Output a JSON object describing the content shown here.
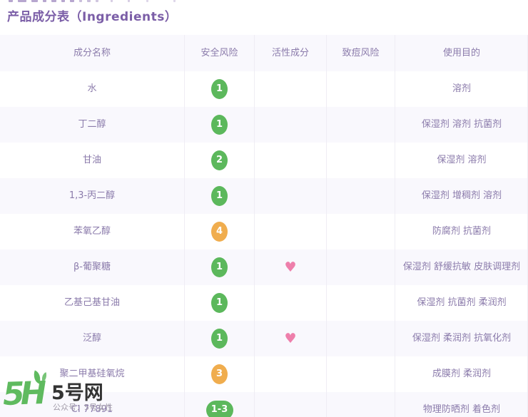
{
  "title": "产品成分表（Ingredients）",
  "colors": {
    "accent": "#7b5ea7",
    "cell-text": "#8b7bab",
    "row-alt": "#f9f8fd",
    "divider": "#efedf4",
    "green": "#5cb85c",
    "orange": "#f0ad4e",
    "heart": "#ee7fab",
    "logo-green": "#5fba5f"
  },
  "icons": {
    "heart": "♥"
  },
  "table": {
    "columns": [
      {
        "key": "name",
        "label": "成分名称"
      },
      {
        "key": "safety",
        "label": "安全风险"
      },
      {
        "key": "active",
        "label": "活性成分"
      },
      {
        "key": "acne",
        "label": "致痘风险"
      },
      {
        "key": "purpose",
        "label": "使用目的"
      }
    ],
    "rows": [
      {
        "name": "水",
        "safety": "1",
        "risk": "low",
        "heart": false,
        "acne": "",
        "purpose": "溶剂"
      },
      {
        "name": "丁二醇",
        "safety": "1",
        "risk": "low",
        "heart": false,
        "acne": "",
        "purpose": "保湿剂 溶剂 抗菌剂"
      },
      {
        "name": "甘油",
        "safety": "2",
        "risk": "low",
        "heart": false,
        "acne": "",
        "purpose": "保湿剂 溶剂"
      },
      {
        "name": "1,3-丙二醇",
        "safety": "1",
        "risk": "low",
        "heart": false,
        "acne": "",
        "purpose": "保湿剂 增稠剂 溶剂"
      },
      {
        "name": "苯氧乙醇",
        "safety": "4",
        "risk": "mid",
        "heart": false,
        "acne": "",
        "purpose": "防腐剂 抗菌剂"
      },
      {
        "name": "β-葡聚糖",
        "safety": "1",
        "risk": "low",
        "heart": true,
        "acne": "",
        "purpose": "保湿剂 舒缓抗敏 皮肤调理剂"
      },
      {
        "name": "乙基己基甘油",
        "safety": "1",
        "risk": "low",
        "heart": false,
        "acne": "",
        "purpose": "保湿剂 抗菌剂 柔润剂"
      },
      {
        "name": "泛醇",
        "safety": "1",
        "risk": "low",
        "heart": true,
        "acne": "",
        "purpose": "保湿剂 柔润剂 抗氧化剂"
      },
      {
        "name": "聚二甲基硅氧烷",
        "safety": "3",
        "risk": "mid",
        "heart": false,
        "acne": "",
        "purpose": "成膜剂 柔润剂"
      },
      {
        "name": "CI 77891",
        "safety": "1-3",
        "risk": "low",
        "heart": false,
        "acne": "",
        "purpose": "物理防晒剂 着色剂"
      }
    ]
  },
  "watermark": {
    "logo_text": "5H",
    "site_name": "5号网",
    "subtext": "公众号：5号女性"
  }
}
